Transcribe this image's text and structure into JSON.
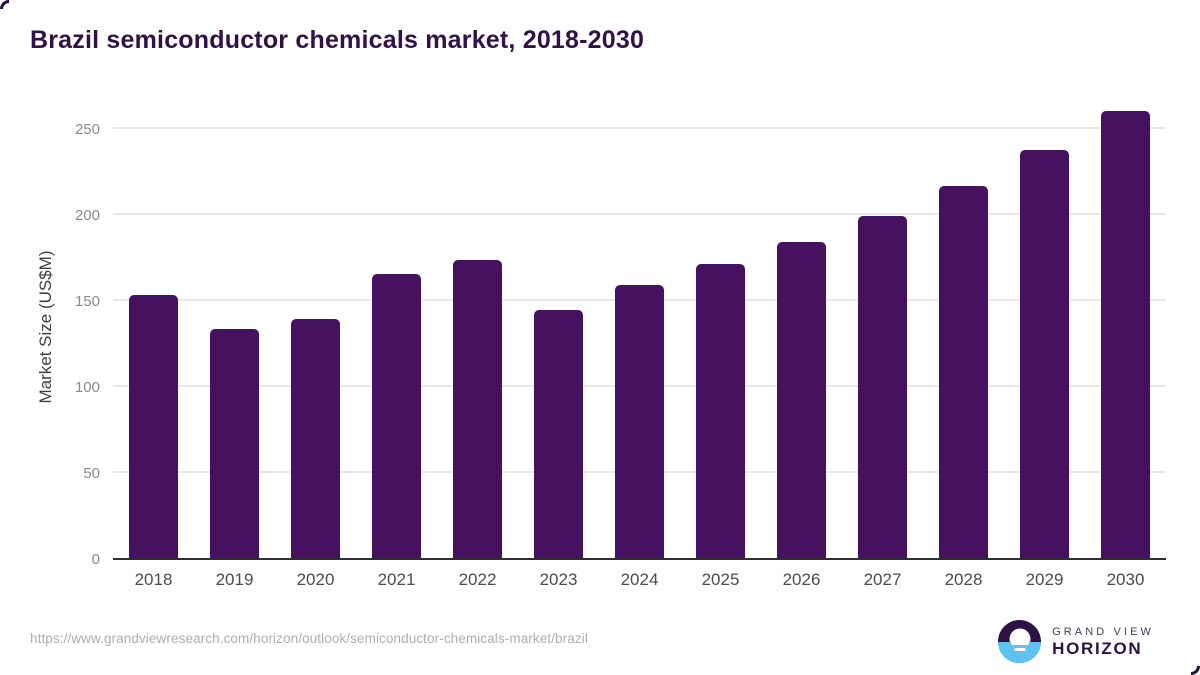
{
  "chart_data": {
    "type": "bar",
    "title": "Brazil semiconductor chemicals market, 2018-2030",
    "categories": [
      "2018",
      "2019",
      "2020",
      "2021",
      "2022",
      "2023",
      "2024",
      "2025",
      "2026",
      "2027",
      "2028",
      "2029",
      "2030"
    ],
    "values": [
      153,
      133,
      139,
      165,
      173,
      144,
      159,
      171,
      184,
      199,
      216,
      237,
      260
    ],
    "xlabel": "",
    "ylabel": "Market Size (US$M)",
    "yticks": [
      0,
      50,
      100,
      150,
      200,
      250
    ],
    "ylim": [
      0,
      270
    ],
    "grid": true,
    "legend": false,
    "bar_color": "#461260"
  },
  "footer": {
    "source_url": "https://www.grandviewresearch.com/horizon/outlook/semiconductor-chemicals-market/brazil",
    "brand": {
      "line1": "GRAND VIEW",
      "line2": "HORIZON"
    }
  },
  "colors": {
    "bar": "#461260",
    "title_text": "#321048",
    "axis_line": "#2e2e2e",
    "gridline": "#e8e8e8",
    "y_tick_label": "#8a8a8a",
    "x_tick_label": "#4c4c4c",
    "url_text": "#aeaeae",
    "brand_purple": "#2d1245",
    "brand_blue": "#5ec3f1"
  }
}
